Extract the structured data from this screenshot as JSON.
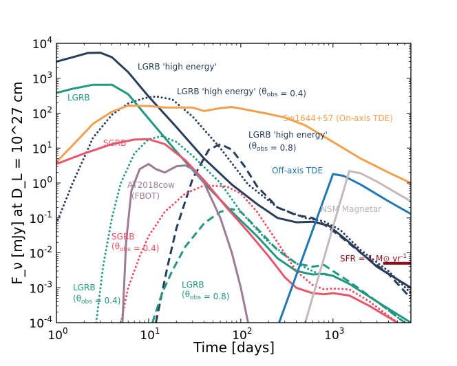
{
  "chart_data": {
    "type": "line",
    "title": "",
    "xlabel": "Time [days]",
    "ylabel": "F_ν [mJy] at D_L = 10^27 cm",
    "xscale": "log",
    "yscale": "log",
    "xlim": [
      1,
      7000
    ],
    "ylim": [
      0.0001,
      10000
    ],
    "x_ticks": [
      {
        "value": 1,
        "label": "10^0"
      },
      {
        "value": 10,
        "label": "10^1"
      },
      {
        "value": 100,
        "label": "10^2"
      },
      {
        "value": 1000,
        "label": "10^3"
      }
    ],
    "y_ticks": [
      {
        "value": 0.0001,
        "label": "10^-4"
      },
      {
        "value": 0.001,
        "label": "10^-3"
      },
      {
        "value": 0.01,
        "label": "10^-2"
      },
      {
        "value": 0.1,
        "label": "10^-1"
      },
      {
        "value": 1,
        "label": "10^0"
      },
      {
        "value": 10,
        "label": "10^1"
      },
      {
        "value": 100,
        "label": "10^2"
      },
      {
        "value": 1000,
        "label": "10^3"
      },
      {
        "value": 10000,
        "label": "10^4"
      }
    ],
    "series": [
      {
        "name": "LGRB 'high energy'",
        "color": "#283d5b",
        "style": "solid",
        "x": [
          1,
          1.5,
          2.2,
          3,
          4,
          6,
          10,
          20,
          40,
          80,
          150,
          250,
          400,
          600,
          900,
          1500,
          3000,
          7000
        ],
        "y": [
          3000,
          4000,
          5300,
          5400,
          4000,
          1500,
          300,
          40,
          5,
          0.9,
          0.25,
          0.1,
          0.075,
          0.078,
          0.06,
          0.02,
          0.004,
          0.001
        ]
      },
      {
        "name": "LGRB 'high energy' (θobs = 0.4)",
        "color": "#283d5b",
        "style": "dotted",
        "x": [
          1,
          1.5,
          2.5,
          4,
          6,
          9,
          12,
          18,
          30,
          60,
          120,
          250,
          500,
          800,
          1200,
          2000,
          4000,
          7000
        ],
        "y": [
          0.07,
          1,
          20,
          90,
          190,
          270,
          300,
          250,
          80,
          10,
          0.9,
          0.2,
          0.1,
          0.08,
          0.045,
          0.012,
          0.003,
          0.0007
        ]
      },
      {
        "name": "LGRB 'high energy' (θobs = 0.8)",
        "color": "#283d5b",
        "style": "dashed",
        "x": [
          12,
          16,
          20,
          30,
          45,
          60,
          80,
          110,
          150,
          250,
          400,
          600,
          800,
          1200,
          2000,
          4000,
          7000
        ],
        "y": [
          0.0001,
          0.004,
          0.05,
          1.3,
          9,
          13,
          9,
          3,
          0.8,
          0.2,
          0.12,
          0.1,
          0.065,
          0.03,
          0.01,
          0.0025,
          0.0005
        ]
      },
      {
        "name": "LGRB",
        "color": "#229880",
        "style": "solid",
        "x": [
          1,
          1.5,
          2.5,
          4,
          6,
          10,
          20,
          40,
          80,
          150,
          250,
          400,
          600,
          800,
          1000,
          1500,
          3000,
          7000
        ],
        "y": [
          380,
          500,
          650,
          650,
          350,
          70,
          8,
          1,
          0.15,
          0.03,
          0.007,
          0.003,
          0.0024,
          0.0025,
          0.0022,
          0.0013,
          0.0004,
          0.0001
        ]
      },
      {
        "name": "LGRB (θobs = 0.4)",
        "color": "#229880",
        "style": "dotted",
        "x": [
          2.7,
          3.2,
          4,
          5,
          7,
          10,
          14,
          20,
          30,
          60,
          100,
          200,
          400,
          700,
          1000,
          1500,
          3000,
          6000
        ],
        "y": [
          0.0001,
          0.004,
          0.1,
          1,
          7,
          18,
          22,
          15,
          6,
          1,
          0.15,
          0.02,
          0.005,
          0.0025,
          0.0022,
          0.0013,
          0.0004,
          0.0001
        ]
      },
      {
        "name": "LGRB (θobs = 0.8)",
        "color": "#229880",
        "style": "dashed",
        "x": [
          11,
          14,
          18,
          25,
          40,
          60,
          80,
          100,
          150,
          250,
          400,
          600,
          800,
          1000,
          1500,
          3000,
          6000
        ],
        "y": [
          0.0001,
          0.0007,
          0.003,
          0.015,
          0.07,
          0.15,
          0.18,
          0.15,
          0.05,
          0.012,
          0.005,
          0.004,
          0.0045,
          0.003,
          0.0015,
          0.0004,
          0.0001
        ]
      },
      {
        "name": "SGRB",
        "color": "#e8566b",
        "style": "solid",
        "x": [
          1,
          2,
          4,
          7,
          10,
          15,
          25,
          40,
          70,
          120,
          200,
          300,
          400,
          600,
          800,
          1000,
          1500,
          2500,
          5000
        ],
        "y": [
          3.5,
          7,
          13,
          17.5,
          18,
          13,
          4.5,
          1.2,
          0.2,
          0.04,
          0.008,
          0.002,
          0.001,
          0.0007,
          0.00065,
          0.0007,
          0.0006,
          0.0003,
          0.0001
        ]
      },
      {
        "name": "SGRB (θobs = 0.4)",
        "color": "#f04a60",
        "style": "dotted",
        "x": [
          5,
          6,
          8,
          10,
          15,
          25,
          40,
          70,
          100,
          150,
          250,
          400,
          600,
          800,
          1000,
          1500,
          2500,
          5000
        ],
        "y": [
          0.0001,
          0.001,
          0.008,
          0.03,
          0.15,
          0.5,
          0.85,
          0.8,
          0.5,
          0.15,
          0.02,
          0.003,
          0.0012,
          0.0009,
          0.00095,
          0.0009,
          0.0004,
          0.0001
        ]
      },
      {
        "name": "AT2018cow (FBOT)",
        "color": "#9b7c94",
        "style": "solid",
        "x": [
          5.2,
          5.7,
          6.5,
          8,
          10,
          12,
          15,
          20,
          25,
          30,
          40,
          60,
          80,
          100,
          120
        ],
        "y": [
          0.0001,
          0.02,
          0.6,
          2.5,
          3.5,
          2.5,
          2,
          3,
          3.2,
          2.5,
          1,
          0.1,
          0.01,
          0.001,
          0.0001
        ]
      },
      {
        "name": "Sw1644+57 (On-axis TDE)",
        "color": "#f0a04e",
        "style": "solid",
        "x": [
          1,
          1.5,
          2.5,
          4,
          6,
          10,
          15,
          30,
          40,
          60,
          80,
          100,
          150,
          200,
          300,
          500,
          1000,
          2000,
          4000,
          7000
        ],
        "y": [
          4,
          12,
          50,
          110,
          165,
          160,
          145,
          145,
          115,
          140,
          150,
          135,
          110,
          95,
          75,
          45,
          15,
          5,
          2,
          1
        ]
      },
      {
        "name": "Off-axis TDE",
        "color": "#1f77b4",
        "style": "solid",
        "x": [
          260,
          1000,
          1300,
          2000,
          4000,
          7000
        ],
        "y": [
          0.0001,
          1.8,
          1.6,
          0.9,
          0.3,
          0.13
        ]
      },
      {
        "name": "NSM Magnetar",
        "color": "#c5b9b9",
        "style": "solid",
        "x": [
          500,
          1500,
          2000,
          3000,
          5000,
          7000
        ],
        "y": [
          0.0001,
          2.2,
          1.9,
          1.1,
          0.5,
          0.3
        ]
      },
      {
        "name": "SFR = 1 M⊙ yr^-1",
        "color": "#8c0c1c",
        "style": "solid",
        "x": [
          3500,
          7000
        ],
        "y": [
          0.005,
          0.005
        ]
      }
    ],
    "annotations": [
      {
        "id": "lgrb-he",
        "text": "LGRB 'high energy'",
        "color": "#283d5b"
      },
      {
        "id": "lgrb-he-04",
        "text": "LGRB 'high energy' (θobs = 0.4)",
        "color": "#283d5b"
      },
      {
        "id": "lgrb",
        "text": "LGRB",
        "color": "#229880"
      },
      {
        "id": "sw1644",
        "text": "Sw1644+57 (On-axis TDE)",
        "color": "#f0a04e"
      },
      {
        "id": "sgrb",
        "text": "SGRB",
        "color": "#e8566b"
      },
      {
        "id": "lgrb-he-08-a",
        "text": "LGRB 'high energy'",
        "color": "#283d5b"
      },
      {
        "id": "lgrb-he-08-b",
        "text": "(θobs = 0.8)",
        "color": "#283d5b"
      },
      {
        "id": "at2018cow-a",
        "text": "AT2018cow",
        "color": "#9b7c94"
      },
      {
        "id": "at2018cow-b",
        "text": "(FBOT)",
        "color": "#9b7c94"
      },
      {
        "id": "offaxis-tde",
        "text": "Off-axis TDE",
        "color": "#1f77b4"
      },
      {
        "id": "nsm",
        "text": "NSM Magnetar",
        "color": "#bdb2b2"
      },
      {
        "id": "sgrb04-a",
        "text": "SGRB",
        "color": "#f04a60"
      },
      {
        "id": "sgrb04-b",
        "text": "(θobs = 0.4)",
        "color": "#f04a60"
      },
      {
        "id": "sfr",
        "text": "SFR = 1 M⊙ yr^-1",
        "color": "#8c0c1c"
      },
      {
        "id": "lgrb04-a",
        "text": "LGRB",
        "color": "#229880"
      },
      {
        "id": "lgrb04-b",
        "text": "(θobs = 0.4)",
        "color": "#229880"
      },
      {
        "id": "lgrb08-a",
        "text": "LGRB",
        "color": "#229880"
      },
      {
        "id": "lgrb08-b",
        "text": "(θobs = 0.8)",
        "color": "#229880"
      }
    ]
  }
}
